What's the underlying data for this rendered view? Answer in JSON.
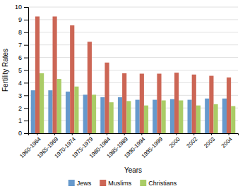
{
  "chart_data": {
    "type": "bar",
    "categories": [
      "1960-1964",
      "1965-1969",
      "1970-1974",
      "1975-1979",
      "1980-1984",
      "1985-1989",
      "1990-1994",
      "1995-1999",
      "2000",
      "2002",
      "2003",
      "2004"
    ],
    "series": [
      {
        "name": "Jews",
        "color": "#6699CC",
        "values": [
          3.4,
          3.4,
          3.3,
          3.05,
          2.85,
          2.85,
          2.65,
          2.65,
          2.7,
          2.65,
          2.75,
          2.75
        ]
      },
      {
        "name": "Muslims",
        "color": "#CC6655",
        "values": [
          9.25,
          9.25,
          8.55,
          7.25,
          5.6,
          4.75,
          4.72,
          4.72,
          4.8,
          4.65,
          4.55,
          4.42
        ]
      },
      {
        "name": "Christians",
        "color": "#AACC66",
        "values": [
          4.75,
          4.3,
          3.7,
          3.05,
          2.45,
          2.55,
          2.2,
          2.6,
          2.6,
          2.2,
          2.3,
          2.15
        ]
      }
    ],
    "xlabel": "Years",
    "ylabel": "Fertility Rates",
    "ylim": [
      0,
      10
    ],
    "yticks": [
      0,
      1,
      2,
      3,
      4,
      5,
      6,
      7,
      8,
      9,
      10
    ],
    "grid": true,
    "legend": "bottom"
  }
}
